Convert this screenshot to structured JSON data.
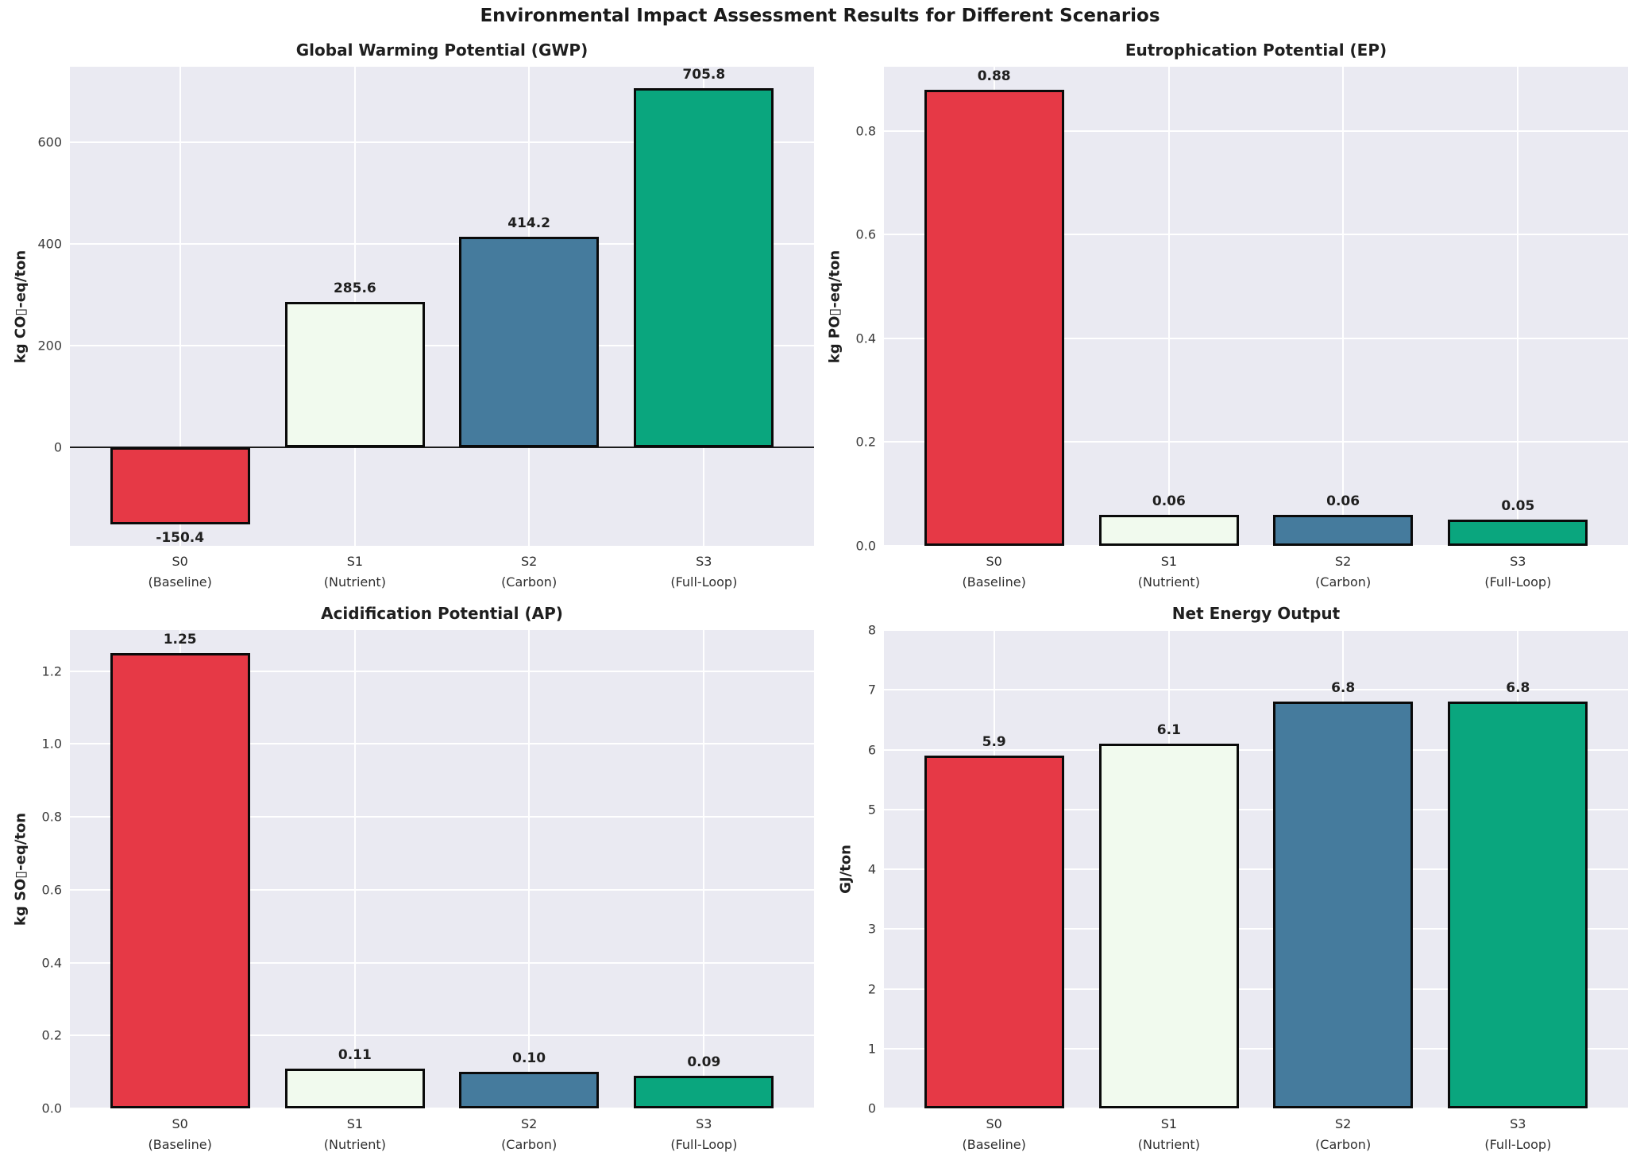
{
  "figure": {
    "title": "Environmental Impact Assessment Results for Different Scenarios",
    "background": "#ffffff",
    "plot_background": "#eaeaf2",
    "grid_color": "#ffffff",
    "grid": true,
    "bar_edge_color": "#0a0a0a",
    "text_color": "#262626",
    "bar_colors": [
      "#e63946",
      "#f1faee",
      "#457b9d",
      "#0aa67e"
    ]
  },
  "chart_data": [
    {
      "type": "bar",
      "title": "Global Warming Potential (GWP)",
      "ylabel": "kg CO▯-eq/ton",
      "categories": [
        "S0\n(Baseline)",
        "S1\n(Nutrient)",
        "S2\n(Carbon)",
        "S3\n(Full-Loop)"
      ],
      "values": [
        -150.4,
        285.6,
        414.2,
        705.8
      ],
      "value_labels": [
        "-150.4",
        "285.6",
        "414.2",
        "705.8"
      ],
      "ylim": [
        -193.2,
        748.6
      ],
      "yticks": [
        0,
        200,
        400,
        600
      ],
      "ytick_labels": [
        "0",
        "200",
        "400",
        "600"
      ],
      "zero_line": true,
      "legend": "none"
    },
    {
      "type": "bar",
      "title": "Eutrophication Potential (EP)",
      "ylabel": "kg PO▯-eq/ton",
      "categories": [
        "S0\n(Baseline)",
        "S1\n(Nutrient)",
        "S2\n(Carbon)",
        "S3\n(Full-Loop)"
      ],
      "values": [
        0.88,
        0.06,
        0.06,
        0.05
      ],
      "value_labels": [
        "0.88",
        "0.06",
        "0.06",
        "0.05"
      ],
      "ylim": [
        0,
        0.924
      ],
      "yticks": [
        0.0,
        0.2,
        0.4,
        0.6,
        0.8
      ],
      "ytick_labels": [
        "0.0",
        "0.2",
        "0.4",
        "0.6",
        "0.8"
      ],
      "zero_line": false,
      "legend": "none"
    },
    {
      "type": "bar",
      "title": "Acidification Potential (AP)",
      "ylabel": "kg SO▯-eq/ton",
      "categories": [
        "S0\n(Baseline)",
        "S1\n(Nutrient)",
        "S2\n(Carbon)",
        "S3\n(Full-Loop)"
      ],
      "values": [
        1.25,
        0.11,
        0.1,
        0.09
      ],
      "value_labels": [
        "1.25",
        "0.11",
        "0.10",
        "0.09"
      ],
      "ylim": [
        0,
        1.3125
      ],
      "yticks": [
        0.0,
        0.2,
        0.4,
        0.6,
        0.8,
        1.0,
        1.2
      ],
      "ytick_labels": [
        "0.0",
        "0.2",
        "0.4",
        "0.6",
        "0.8",
        "1.0",
        "1.2"
      ],
      "zero_line": false,
      "legend": "none"
    },
    {
      "type": "bar",
      "title": "Net Energy Output",
      "ylabel": "GJ/ton",
      "categories": [
        "S0\n(Baseline)",
        "S1\n(Nutrient)",
        "S2\n(Carbon)",
        "S3\n(Full-Loop)"
      ],
      "values": [
        5.9,
        6.1,
        6.8,
        6.8
      ],
      "value_labels": [
        "5.9",
        "6.1",
        "6.8",
        "6.8"
      ],
      "ylim": [
        0,
        8
      ],
      "yticks": [
        0,
        1,
        2,
        3,
        4,
        5,
        6,
        7,
        8
      ],
      "ytick_labels": [
        "0",
        "1",
        "2",
        "3",
        "4",
        "5",
        "6",
        "7",
        "8"
      ],
      "zero_line": false,
      "legend": "none"
    }
  ]
}
